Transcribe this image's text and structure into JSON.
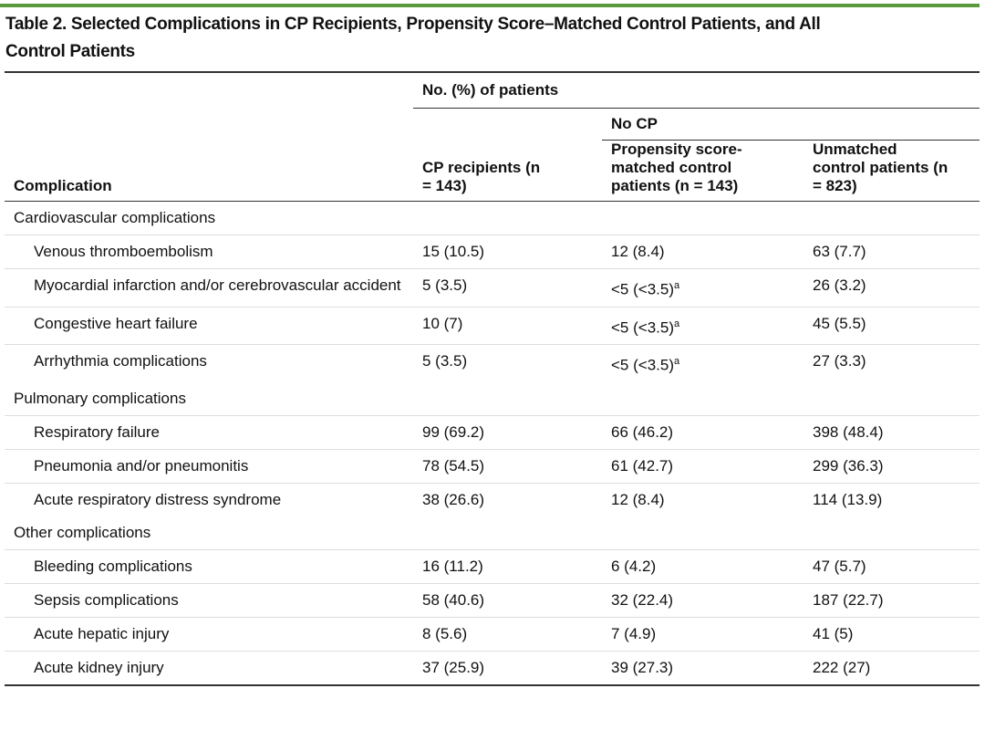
{
  "title": "Table 2. Selected Complications in CP Recipients, Propensity Score–Matched Control Patients, and All Control Patients",
  "table": {
    "header": {
      "complication": "Complication",
      "group": "No. (%) of patients",
      "subgroup": "No CP",
      "columns": [
        "CP recipients (n = 143)",
        "Propensity score-matched control patients (n = 143)",
        "Unmatched control patients (n = 823)"
      ]
    },
    "sections": [
      {
        "name": "Cardiovascular complications",
        "rows": [
          [
            "Venous thromboembolism",
            "15 (10.5)",
            "12 (8.4)",
            "63 (7.7)"
          ],
          [
            "Myocardial infarction and/or cerebrovascular accident",
            "5 (3.5)",
            {
              "text": "<5 (<3.5)",
              "note": "a"
            },
            "26 (3.2)"
          ],
          [
            "Congestive heart failure",
            "10 (7)",
            {
              "text": "<5 (<3.5)",
              "note": "a"
            },
            "45 (5.5)"
          ],
          [
            "Arrhythmia complications",
            "5 (3.5)",
            {
              "text": "<5 (<3.5)",
              "note": "a"
            },
            "27 (3.3)"
          ]
        ]
      },
      {
        "name": "Pulmonary complications",
        "rows": [
          [
            "Respiratory failure",
            "99 (69.2)",
            "66 (46.2)",
            "398 (48.4)"
          ],
          [
            "Pneumonia and/or pneumonitis",
            "78 (54.5)",
            "61 (42.7)",
            "299 (36.3)"
          ],
          [
            "Acute respiratory distress syndrome",
            "38 (26.6)",
            "12 (8.4)",
            "114 (13.9)"
          ]
        ]
      },
      {
        "name": "Other complications",
        "rows": [
          [
            "Bleeding complications",
            "16 (11.2)",
            "6 (4.2)",
            "47 (5.7)"
          ],
          [
            "Sepsis complications",
            "58 (40.6)",
            "32 (22.4)",
            "187 (22.7)"
          ],
          [
            "Acute hepatic injury",
            "8 (5.6)",
            "7 (4.9)",
            "41 (5)"
          ],
          [
            "Acute kidney injury",
            "37 (25.9)",
            "39 (27.3)",
            "222 (27)"
          ]
        ]
      }
    ]
  }
}
